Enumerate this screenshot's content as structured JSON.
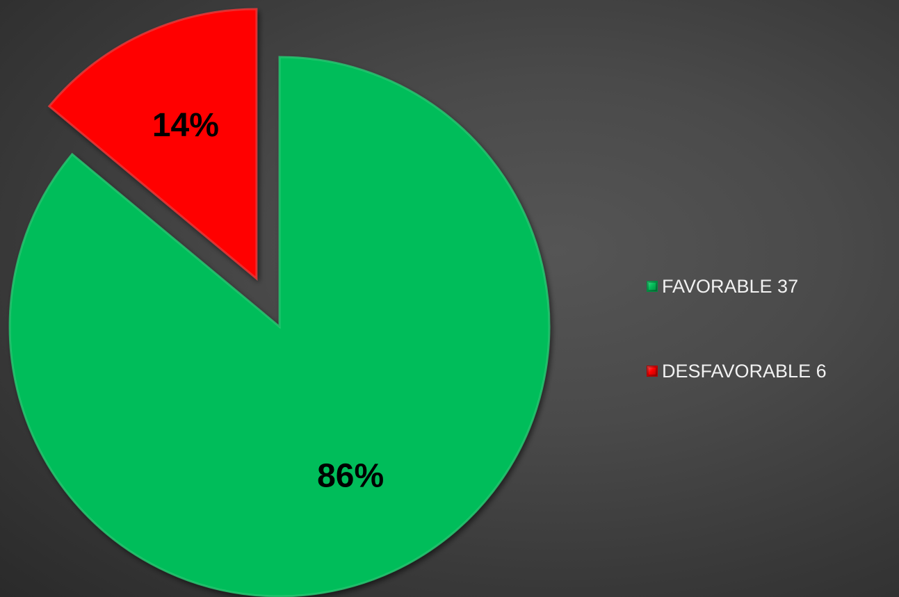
{
  "chart_data": {
    "type": "pie",
    "slices": [
      {
        "label": "FAVORABLE 37",
        "value": 37,
        "percent_label": "86%",
        "color": "#05bd5a",
        "color_dark": "#03893f",
        "color_light": "#3fe08a"
      },
      {
        "label": "DESFAVORABLE 6",
        "value": 6,
        "percent_label": "14%",
        "color": "#ff0000",
        "color_dark": "#b30000",
        "color_light": "#ff5a5a"
      }
    ],
    "exploded": "all",
    "legend_position": "right",
    "background": "#4a4a4a"
  }
}
